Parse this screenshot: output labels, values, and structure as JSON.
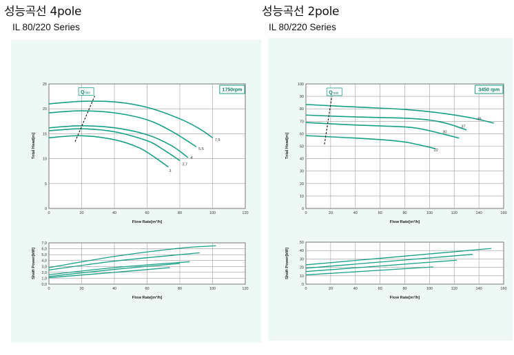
{
  "headers": {
    "left_title": "성능곡선 4pole",
    "left_subtitle": "IL 80/220 Series",
    "right_title": "성능곡선 2pole",
    "right_subtitle": "IL 80/220 Series"
  },
  "colors": {
    "curve": "#14a085",
    "panel_bg": "#eef8f4"
  },
  "chart_data": [
    {
      "id": "head-4pole",
      "type": "line",
      "rpm_label": "1750rpm",
      "qmin_label": "Q",
      "qmin_sub": "min",
      "xlabel": "Flow Rate[m³/h]",
      "ylabel": "Total Head[m]",
      "xlim": [
        0,
        120
      ],
      "ylim": [
        0,
        25
      ],
      "xticks": [
        0,
        20,
        40,
        60,
        80,
        100,
        120
      ],
      "yticks": [
        0,
        5,
        10,
        15,
        20,
        25
      ],
      "grid": true,
      "series": [
        {
          "name": "7,5",
          "points": [
            [
              0,
              21.0
            ],
            [
              20,
              21.5
            ],
            [
              40,
              21.4
            ],
            [
              60,
              20.3
            ],
            [
              80,
              18.0
            ],
            [
              92,
              16.0
            ],
            [
              100,
              14.2
            ]
          ]
        },
        {
          "name": "5,5",
          "points": [
            [
              0,
              19.2
            ],
            [
              20,
              19.6
            ],
            [
              40,
              19.2
            ],
            [
              60,
              17.8
            ],
            [
              75,
              15.5
            ],
            [
              90,
              12.4
            ]
          ]
        },
        {
          "name": "4",
          "points": [
            [
              0,
              16.2
            ],
            [
              20,
              16.6
            ],
            [
              40,
              16.2
            ],
            [
              60,
              14.8
            ],
            [
              75,
              12.6
            ],
            [
              85,
              10.2
            ]
          ]
        },
        {
          "name": "3,7",
          "points": [
            [
              0,
              15.6
            ],
            [
              20,
              16.0
            ],
            [
              40,
              15.4
            ],
            [
              60,
              13.6
            ],
            [
              70,
              11.8
            ],
            [
              80,
              9.6
            ]
          ]
        },
        {
          "name": "3",
          "points": [
            [
              0,
              14.2
            ],
            [
              20,
              14.6
            ],
            [
              40,
              13.8
            ],
            [
              55,
              12.2
            ],
            [
              65,
              10.2
            ],
            [
              73,
              8.3
            ]
          ]
        }
      ],
      "curve_labels": [
        {
          "text": "7,5",
          "x": 101,
          "y": 13.8
        },
        {
          "text": "5,5",
          "x": 91,
          "y": 12.0
        },
        {
          "text": "4",
          "x": 86,
          "y": 10.2
        },
        {
          "text": "3,7",
          "x": 81,
          "y": 8.9
        },
        {
          "text": "3",
          "x": 73,
          "y": 7.6
        }
      ],
      "qmin_line": [
        [
          16,
          13.4
        ],
        [
          28,
          22.6
        ]
      ],
      "qmin_box": {
        "x": 19,
        "y": 23.7
      }
    },
    {
      "id": "power-4pole",
      "type": "line",
      "xlabel": "Flow Rate[m³/h]",
      "ylabel": "Shaft Power[kW]",
      "xlim": [
        0,
        120
      ],
      "ylim": [
        0,
        7
      ],
      "xticks": [
        0,
        20,
        40,
        60,
        80,
        100,
        120
      ],
      "yticks": [
        "0,0",
        "1,0",
        "2,0",
        "3,0",
        "4,0",
        "5,0",
        "6,0",
        "7,0"
      ],
      "grid": true,
      "series": [
        {
          "name": "7,5",
          "points": [
            [
              0,
              2.8
            ],
            [
              40,
              4.7
            ],
            [
              80,
              6.1
            ],
            [
              102,
              6.5
            ]
          ]
        },
        {
          "name": "5,5",
          "points": [
            [
              0,
              2.4
            ],
            [
              40,
              3.9
            ],
            [
              80,
              5.0
            ],
            [
              92,
              5.3
            ]
          ]
        },
        {
          "name": "4",
          "points": [
            [
              0,
              1.6
            ],
            [
              40,
              2.8
            ],
            [
              86,
              3.8
            ]
          ]
        },
        {
          "name": "3,7",
          "points": [
            [
              0,
              1.3
            ],
            [
              40,
              2.5
            ],
            [
              80,
              3.5
            ]
          ]
        },
        {
          "name": "3",
          "points": [
            [
              0,
              1.1
            ],
            [
              40,
              2.0
            ],
            [
              74,
              2.8
            ]
          ]
        }
      ]
    },
    {
      "id": "head-2pole",
      "type": "line",
      "rpm_label": "3450 rpm",
      "qmin_label": "Q",
      "qmin_sub": "min",
      "xlabel": "Flow Rate[m³/h]",
      "ylabel": "Total Head[m]",
      "xlim": [
        0,
        160
      ],
      "ylim": [
        0,
        100
      ],
      "xticks": [
        0,
        20,
        40,
        60,
        80,
        100,
        120,
        140,
        160
      ],
      "yticks": [
        0,
        10,
        20,
        30,
        40,
        50,
        60,
        70,
        80,
        90,
        100
      ],
      "grid": true,
      "series": [
        {
          "name": "45",
          "points": [
            [
              0,
              83.5
            ],
            [
              40,
              81.5
            ],
            [
              80,
              79.5
            ],
            [
              110,
              76.5
            ],
            [
              135,
              72.5
            ],
            [
              152,
              68.5
            ]
          ]
        },
        {
          "name": "37",
          "points": [
            [
              0,
              75.0
            ],
            [
              40,
              73.5
            ],
            [
              80,
              72.5
            ],
            [
              100,
              71.0
            ],
            [
              115,
              68.0
            ],
            [
              130,
              63.0
            ]
          ]
        },
        {
          "name": "30",
          "points": [
            [
              0,
              69.0
            ],
            [
              40,
              67.0
            ],
            [
              80,
              65.5
            ],
            [
              95,
              63.5
            ],
            [
              110,
              60.0
            ],
            [
              124,
              56.5
            ]
          ]
        },
        {
          "name": "22",
          "points": [
            [
              0,
              58.5
            ],
            [
              40,
              56.5
            ],
            [
              70,
              54.5
            ],
            [
              85,
              52.5
            ],
            [
              105,
              48.0
            ]
          ]
        }
      ],
      "curve_labels": [
        {
          "text": "45",
          "x": 138,
          "y": 72.0
        },
        {
          "text": "37",
          "x": 125,
          "y": 66.0
        },
        {
          "text": "30",
          "x": 110,
          "y": 61.5
        },
        {
          "text": "22",
          "x": 103,
          "y": 47.0
        }
      ],
      "qmin_line": [
        [
          15,
          51.5
        ],
        [
          21,
          90.0
        ]
      ],
      "qmin_box": {
        "x": 18,
        "y": 94.5
      }
    },
    {
      "id": "power-2pole",
      "type": "line",
      "xlabel": "Flow Rate[m³/h]",
      "ylabel": "Shaft Power[kW]",
      "xlim": [
        0,
        160
      ],
      "ylim": [
        0,
        50
      ],
      "xticks": [
        0,
        20,
        40,
        60,
        80,
        100,
        120,
        140,
        160
      ],
      "yticks": [
        0,
        10,
        20,
        30,
        40,
        50
      ],
      "grid": true,
      "series": [
        {
          "name": "45",
          "points": [
            [
              0,
              23.0
            ],
            [
              150,
              42.5
            ]
          ]
        },
        {
          "name": "37",
          "points": [
            [
              0,
              19.0
            ],
            [
              135,
              35.5
            ]
          ]
        },
        {
          "name": "30",
          "points": [
            [
              0,
              15.0
            ],
            [
              122,
              28.5
            ]
          ]
        },
        {
          "name": "22",
          "points": [
            [
              0,
              11.0
            ],
            [
              103,
              20.5
            ]
          ]
        }
      ]
    }
  ]
}
